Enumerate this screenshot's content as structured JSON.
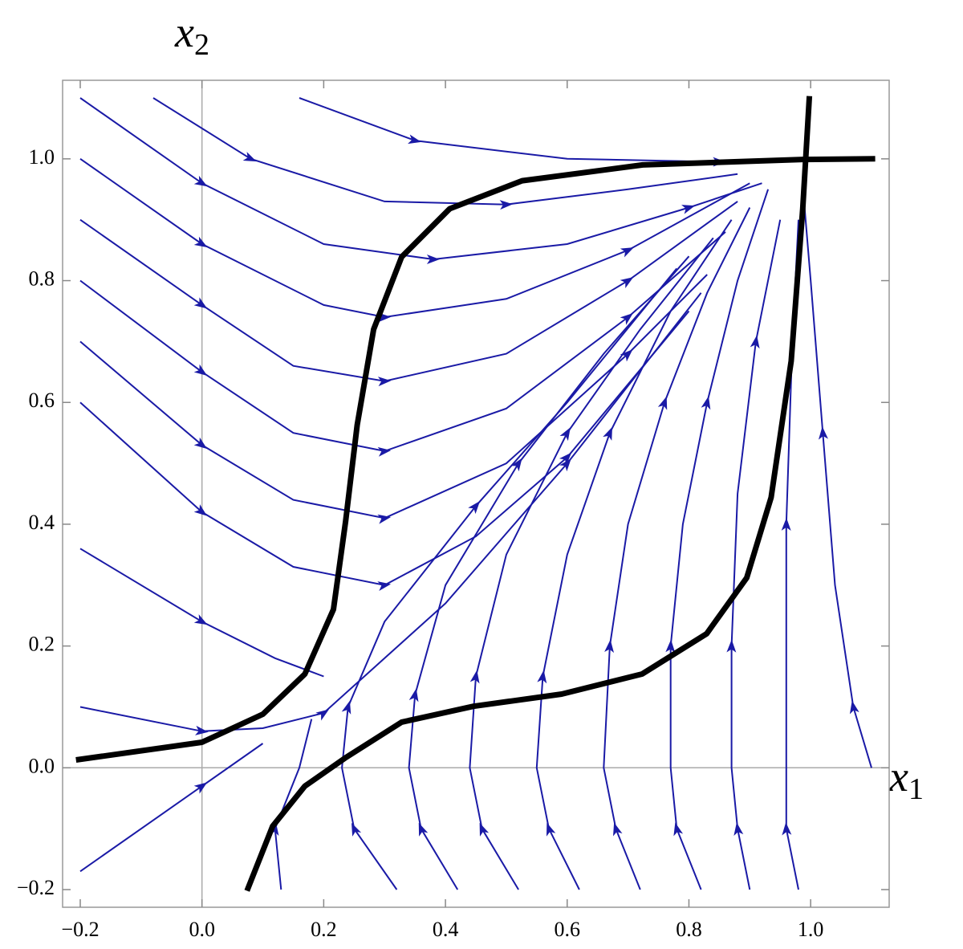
{
  "chart_data": {
    "type": "stream",
    "xlabel": "x",
    "xlabel_sub": "1",
    "ylabel": "x",
    "ylabel_sub": "2",
    "xlim": [
      -0.229,
      1.129
    ],
    "ylim": [
      -0.229,
      1.129
    ],
    "xticks": [
      {
        "value": -0.2,
        "label": "−0.2"
      },
      {
        "value": 0,
        "label": "0.0"
      },
      {
        "value": 0.2,
        "label": "0.2"
      },
      {
        "value": 0.4,
        "label": "0.4"
      },
      {
        "value": 0.6,
        "label": "0.6"
      },
      {
        "value": 0.8,
        "label": "0.8"
      },
      {
        "value": 1,
        "label": "1.0"
      }
    ],
    "yticks": [
      {
        "value": -0.2,
        "label": "−0.2"
      },
      {
        "value": 0,
        "label": "0.0"
      },
      {
        "value": 0.2,
        "label": "0.2"
      },
      {
        "value": 0.4,
        "label": "0.4"
      },
      {
        "value": 0.6,
        "label": "0.6"
      },
      {
        "value": 0.8,
        "label": "0.8"
      },
      {
        "value": 1,
        "label": "1.0"
      }
    ],
    "stream_color": "#1a1aa6",
    "nullcline_color": "#000000",
    "streamlines": [
      {
        "x": [
          0.16,
          0.35,
          0.6,
          0.85,
          0.99
        ],
        "y": [
          1.1,
          1.03,
          1.0,
          0.995,
          1.0
        ]
      },
      {
        "x": [
          -0.08,
          0.08,
          0.3,
          0.5,
          0.7,
          0.88
        ],
        "y": [
          1.1,
          1.0,
          0.93,
          0.925,
          0.95,
          0.975
        ]
      },
      {
        "x": [
          -0.2,
          0,
          0.2,
          0.38,
          0.6,
          0.8,
          0.92
        ],
        "y": [
          1.1,
          0.96,
          0.86,
          0.835,
          0.86,
          0.92,
          0.96
        ]
      },
      {
        "x": [
          -0.2,
          0,
          0.2,
          0.3,
          0.5,
          0.7,
          0.9
        ],
        "y": [
          1.0,
          0.86,
          0.76,
          0.74,
          0.77,
          0.85,
          0.96
        ]
      },
      {
        "x": [
          -0.2,
          0,
          0.15,
          0.3,
          0.5,
          0.7,
          0.88
        ],
        "y": [
          0.9,
          0.76,
          0.66,
          0.635,
          0.68,
          0.8,
          0.93
        ]
      },
      {
        "x": [
          -0.2,
          0,
          0.15,
          0.3,
          0.5,
          0.7,
          0.86
        ],
        "y": [
          0.8,
          0.65,
          0.55,
          0.52,
          0.59,
          0.74,
          0.88
        ]
      },
      {
        "x": [
          -0.2,
          0,
          0.15,
          0.3,
          0.5,
          0.7,
          0.83
        ],
        "y": [
          0.7,
          0.53,
          0.44,
          0.41,
          0.5,
          0.68,
          0.81
        ]
      },
      {
        "x": [
          -0.2,
          0,
          0.15,
          0.3,
          0.45,
          0.6,
          0.8
        ],
        "y": [
          0.6,
          0.42,
          0.33,
          0.3,
          0.38,
          0.51,
          0.75
        ]
      },
      {
        "x": [
          -0.2,
          0,
          0.12,
          0.2
        ],
        "y": [
          0.36,
          0.24,
          0.18,
          0.15
        ]
      },
      {
        "x": [
          -0.2,
          0,
          0.1,
          0.2,
          0.4,
          0.6,
          0.82
        ],
        "y": [
          0.1,
          0.06,
          0.065,
          0.09,
          0.27,
          0.5,
          0.78
        ]
      },
      {
        "x": [
          -0.2,
          0,
          0.1
        ],
        "y": [
          -0.17,
          -0.03,
          0.04
        ]
      },
      {
        "x": [
          0.13,
          0.12,
          0.16,
          0.18
        ],
        "y": [
          -0.2,
          -0.1,
          0.0,
          0.08
        ]
      },
      {
        "x": [
          0.32,
          0.25,
          0.23,
          0.24,
          0.3,
          0.45,
          0.6,
          0.78
        ],
        "y": [
          -0.2,
          -0.1,
          0.0,
          0.1,
          0.24,
          0.43,
          0.6,
          0.82
        ]
      },
      {
        "x": [
          0.42,
          0.36,
          0.34,
          0.35,
          0.4,
          0.52,
          0.66,
          0.8
        ],
        "y": [
          -0.2,
          -0.1,
          0.0,
          0.12,
          0.3,
          0.5,
          0.68,
          0.84
        ]
      },
      {
        "x": [
          0.52,
          0.46,
          0.44,
          0.45,
          0.5,
          0.6,
          0.72,
          0.84
        ],
        "y": [
          -0.2,
          -0.1,
          0.0,
          0.15,
          0.35,
          0.55,
          0.72,
          0.87
        ]
      },
      {
        "x": [
          0.62,
          0.57,
          0.55,
          0.56,
          0.6,
          0.67,
          0.77,
          0.87
        ],
        "y": [
          -0.2,
          -0.1,
          0.0,
          0.15,
          0.35,
          0.55,
          0.75,
          0.9
        ]
      },
      {
        "x": [
          0.72,
          0.68,
          0.66,
          0.67,
          0.7,
          0.76,
          0.83,
          0.9
        ],
        "y": [
          -0.2,
          -0.1,
          0.0,
          0.2,
          0.4,
          0.6,
          0.78,
          0.92
        ]
      },
      {
        "x": [
          0.82,
          0.78,
          0.77,
          0.77,
          0.79,
          0.83,
          0.88,
          0.93
        ],
        "y": [
          -0.2,
          -0.1,
          0.0,
          0.2,
          0.4,
          0.6,
          0.8,
          0.95
        ]
      },
      {
        "x": [
          0.9,
          0.88,
          0.87,
          0.87,
          0.88,
          0.91,
          0.95
        ],
        "y": [
          -0.2,
          -0.1,
          0.0,
          0.2,
          0.45,
          0.7,
          0.9
        ]
      },
      {
        "x": [
          0.98,
          0.96,
          0.96,
          0.96,
          0.97,
          0.98
        ],
        "y": [
          -0.2,
          -0.1,
          0.1,
          0.4,
          0.7,
          0.9
        ]
      },
      {
        "x": [
          1.1,
          1.07,
          1.04,
          1.02,
          1.0,
          0.99
        ],
        "y": [
          0.0,
          0.1,
          0.3,
          0.55,
          0.8,
          0.92
        ]
      }
    ],
    "nullclines": [
      {
        "x": [
          -0.207,
          0,
          0.1,
          0.169,
          0.216,
          0.236,
          0.255,
          0.282,
          0.328,
          0.407,
          0.526,
          0.724,
          0.987,
          1.106
        ],
        "y": [
          0.013,
          0.042,
          0.088,
          0.154,
          0.26,
          0.405,
          0.563,
          0.72,
          0.839,
          0.918,
          0.964,
          0.99,
          0.999,
          1.0
        ]
      },
      {
        "x": [
          0.074,
          0.116,
          0.169,
          0.235,
          0.328,
          0.446,
          0.591,
          0.723,
          0.829,
          0.895,
          0.935,
          0.968,
          0.987,
          0.998
        ],
        "y": [
          -0.202,
          -0.096,
          -0.03,
          0.016,
          0.075,
          0.101,
          0.121,
          0.154,
          0.22,
          0.312,
          0.444,
          0.668,
          0.918,
          1.103
        ]
      }
    ]
  }
}
